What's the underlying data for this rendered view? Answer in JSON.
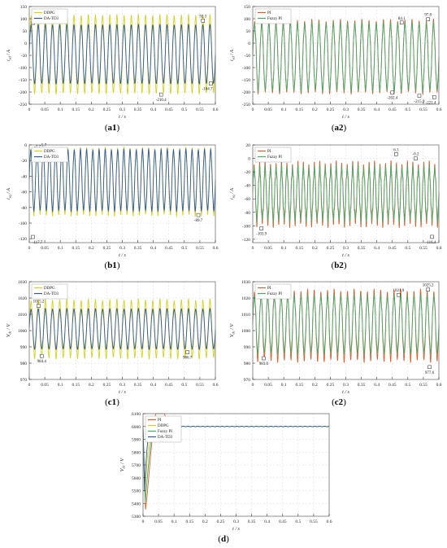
{
  "colors": {
    "ddpg": "#d6d21c",
    "datd3": "#2e5a9e",
    "pi": "#d3622e",
    "fuzzy_pi": "#49a86a",
    "frame": "#777777",
    "grid": "#dcdcdc"
  },
  "captions": [
    "a1",
    "a2",
    "b1",
    "b2",
    "c1",
    "c2",
    "d"
  ],
  "chart_data": [
    {
      "id": "a1",
      "type": "line",
      "xlabel": "t / s",
      "ylabel": "i_sd / A",
      "xlim": [
        0,
        0.6
      ],
      "ylim": [
        -250,
        150
      ],
      "xticks": [
        0,
        0.05,
        0.1,
        0.15,
        0.2,
        0.25,
        0.3,
        0.35,
        0.4,
        0.45,
        0.5,
        0.55,
        0.6
      ],
      "xtick_labels": [
        "0",
        "0.05",
        "0.1",
        "0.15",
        "0.2",
        "0.25",
        "0.3",
        "0.35",
        "0.4",
        "0.45",
        "0.5",
        "0.55",
        "0.6"
      ],
      "yticks": [
        -250,
        -200,
        -150,
        -100,
        -50,
        0,
        50,
        100,
        150
      ],
      "ytick_labels": [
        "-250",
        "-200",
        "-150",
        "-100",
        "-50",
        "0",
        "50",
        "100",
        "150"
      ],
      "legend": "top-left",
      "series": [
        {
          "name": "DDPG",
          "color_key": "ddpg",
          "cycles": 26,
          "mean": -45,
          "amplitude": 155,
          "ripple": 0.03
        },
        {
          "name": "DA-TD3",
          "color_key": "datd3",
          "cycles": 26,
          "mean": -45,
          "amplitude": 118,
          "ripple": 0.02
        }
      ],
      "annotations": [
        {
          "text": "83.1",
          "x": 0.012,
          "y": 83.1
        },
        {
          "text": "92.3",
          "x": 0.56,
          "y": 92.3
        },
        {
          "text": "-210.4",
          "x": 0.425,
          "y": -210.4
        },
        {
          "text": "-164.7",
          "x": 0.585,
          "y": -164.7
        }
      ]
    },
    {
      "id": "a2",
      "type": "line",
      "xlabel": "t / s",
      "ylabel": "i_sd / A",
      "xlim": [
        0,
        0.6
      ],
      "ylim": [
        -250,
        150
      ],
      "xticks": [
        0,
        0.05,
        0.1,
        0.15,
        0.2,
        0.25,
        0.3,
        0.35,
        0.4,
        0.45,
        0.5,
        0.55,
        0.6
      ],
      "xtick_labels": [
        "0",
        "0.05",
        "0.1",
        "0.15",
        "0.2",
        "0.25",
        "0.3",
        "0.35",
        "0.4",
        "0.45",
        "0.5",
        "0.55",
        "0.6"
      ],
      "yticks": [
        -250,
        -200,
        -150,
        -100,
        -50,
        0,
        50,
        100,
        150
      ],
      "ytick_labels": [
        "-250",
        "-200",
        "-150",
        "-100",
        "-50",
        "0",
        "50",
        "100",
        "150"
      ],
      "legend": "top-left",
      "series": [
        {
          "name": "PI",
          "color_key": "pi",
          "cycles": 26,
          "mean": -55,
          "amplitude": 140,
          "ripple": 0.06
        },
        {
          "name": "Fuzzy PI",
          "color_key": "fuzzy_pi",
          "cycles": 26,
          "mean": -55,
          "amplitude": 133,
          "ripple": 0.04
        }
      ],
      "annotations": [
        {
          "text": "84.1",
          "x": 0.48,
          "y": 84.1
        },
        {
          "text": "97.8",
          "x": 0.565,
          "y": 97.8
        },
        {
          "text": "-202.4",
          "x": 0.45,
          "y": -202.4
        },
        {
          "text": "-215.9",
          "x": 0.537,
          "y": -215.9
        },
        {
          "text": "-221.4",
          "x": 0.585,
          "y": -221.4
        }
      ]
    },
    {
      "id": "b1",
      "type": "line",
      "xlabel": "t / s",
      "ylabel": "i_sq / A",
      "xlim": [
        0,
        0.6
      ],
      "ylim": [
        -125,
        0
      ],
      "xticks": [
        0,
        0.05,
        0.1,
        0.15,
        0.2,
        0.25,
        0.3,
        0.35,
        0.4,
        0.45,
        0.5,
        0.55,
        0.6
      ],
      "xtick_labels": [
        "0",
        "0.05",
        "0.1",
        "0.15",
        "0.2",
        "0.25",
        "0.3",
        "0.35",
        "0.4",
        "0.45",
        "0.5",
        "0.55",
        "0.6"
      ],
      "yticks": [
        -120,
        -100,
        -80,
        -60,
        -40,
        -20,
        0
      ],
      "ytick_labels": [
        "-120",
        "-100",
        "-80",
        "-60",
        "-40",
        "-20",
        "0"
      ],
      "legend": "top-left",
      "series": [
        {
          "name": "DDPG",
          "color_key": "ddpg",
          "cycles": 30,
          "mean": -47,
          "amplitude": 41,
          "ripple": 0.05
        },
        {
          "name": "DA-TD3",
          "color_key": "datd3",
          "cycles": 30,
          "mean": -45,
          "amplitude": 38,
          "ripple": 0.03
        }
      ],
      "annotations": [
        {
          "text": "-7.7",
          "x": 0.02,
          "y": -7.7
        },
        {
          "text": "-5.7",
          "x": 0.045,
          "y": -5.7
        },
        {
          "text": "-117.7",
          "x": 0.012,
          "y": -117.7
        },
        {
          "text": "-89.7",
          "x": 0.545,
          "y": -89.7
        }
      ]
    },
    {
      "id": "b2",
      "type": "line",
      "xlabel": "t / s",
      "ylabel": "i_sq / A",
      "xlim": [
        0,
        0.6
      ],
      "ylim": [
        -125,
        20
      ],
      "xticks": [
        0,
        0.05,
        0.1,
        0.15,
        0.2,
        0.25,
        0.3,
        0.35,
        0.4,
        0.45,
        0.5,
        0.55,
        0.6
      ],
      "xtick_labels": [
        "0",
        "0.05",
        "0.1",
        "0.15",
        "0.2",
        "0.25",
        "0.3",
        "0.35",
        "0.4",
        "0.45",
        "0.5",
        "0.55",
        "0.6"
      ],
      "yticks": [
        -120,
        -100,
        -80,
        -60,
        -40,
        -20,
        0,
        20
      ],
      "ytick_labels": [
        "-120",
        "-100",
        "-80",
        "-60",
        "-40",
        "-20",
        "0",
        "20"
      ],
      "legend": "top-left",
      "series": [
        {
          "name": "PI",
          "color_key": "pi",
          "cycles": 34,
          "mean": -53,
          "amplitude": 42,
          "ripple": 0.12
        },
        {
          "name": "Fuzzy PI",
          "color_key": "fuzzy_pi",
          "cycles": 34,
          "mean": -52,
          "amplitude": 37,
          "ripple": 0.1
        }
      ],
      "annotations": [
        {
          "text": "6.3",
          "x": 0.462,
          "y": 6.3
        },
        {
          "text": "-0.2",
          "x": 0.525,
          "y": -0.2
        },
        {
          "text": "-103.9",
          "x": 0.028,
          "y": -103.9
        },
        {
          "text": "-116.4",
          "x": 0.578,
          "y": -116.4
        }
      ]
    },
    {
      "id": "c1",
      "type": "line",
      "xlabel": "t / s",
      "ylabel": "V_dc / V",
      "xlim": [
        0,
        0.6
      ],
      "ylim": [
        970,
        1030
      ],
      "xticks": [
        0,
        0.05,
        0.1,
        0.15,
        0.2,
        0.25,
        0.3,
        0.35,
        0.4,
        0.45,
        0.5,
        0.55,
        0.6
      ],
      "xtick_labels": [
        "0",
        "0.05",
        "0.1",
        "0.15",
        "0.2",
        "0.25",
        "0.3",
        "0.35",
        "0.4",
        "0.45",
        "0.5",
        "0.55",
        "0.6"
      ],
      "yticks": [
        970,
        980,
        990,
        1000,
        1010,
        1020,
        1030
      ],
      "ytick_labels": [
        "970",
        "980",
        "990",
        "1000",
        "1010",
        "1020",
        "1030"
      ],
      "legend": "top-left",
      "series": [
        {
          "name": "DDPG",
          "color_key": "ddpg",
          "cycles": 26,
          "mean": 1001,
          "amplitude": 17,
          "ripple": 0.05
        },
        {
          "name": "DA-TD3",
          "color_key": "datd3",
          "cycles": 26,
          "mean": 1001,
          "amplitude": 12,
          "ripple": 0.03
        }
      ],
      "annotations": [
        {
          "text": "1020.9",
          "x": 0.02,
          "y": 1020.9
        },
        {
          "text": "1015.2",
          "x": 0.03,
          "y": 1015.2
        },
        {
          "text": "984.4",
          "x": 0.04,
          "y": 984.4
        },
        {
          "text": "986.7",
          "x": 0.51,
          "y": 986.7
        }
      ]
    },
    {
      "id": "c2",
      "type": "line",
      "xlabel": "t / s",
      "ylabel": "V_dc / V",
      "xlim": [
        0,
        0.6
      ],
      "ylim": [
        970,
        1030
      ],
      "xticks": [
        0,
        0.05,
        0.1,
        0.15,
        0.2,
        0.25,
        0.3,
        0.35,
        0.4,
        0.45,
        0.5,
        0.55,
        0.6
      ],
      "xtick_labels": [
        "0",
        "0.05",
        "0.1",
        "0.15",
        "0.2",
        "0.25",
        "0.3",
        "0.35",
        "0.4",
        "0.45",
        "0.5",
        "0.55",
        "0.6"
      ],
      "yticks": [
        970,
        980,
        990,
        1000,
        1010,
        1020,
        1030
      ],
      "ytick_labels": [
        "970",
        "980",
        "990",
        "1000",
        "1010",
        "1020",
        "1030"
      ],
      "legend": "top-left",
      "series": [
        {
          "name": "PI",
          "color_key": "pi",
          "cycles": 28,
          "mean": 1003,
          "amplitude": 20,
          "ripple": 0.08
        },
        {
          "name": "Fuzzy PI",
          "color_key": "fuzzy_pi",
          "cycles": 28,
          "mean": 1004,
          "amplitude": 17,
          "ripple": 0.05
        }
      ],
      "annotations": [
        {
          "text": "1021.9",
          "x": 0.47,
          "y": 1021.9
        },
        {
          "text": "1025.2",
          "x": 0.565,
          "y": 1025.2
        },
        {
          "text": "983.0",
          "x": 0.035,
          "y": 983.0
        },
        {
          "text": "977.6",
          "x": 0.57,
          "y": 977.6
        }
      ]
    },
    {
      "id": "d",
      "type": "line",
      "xlabel": "t / s",
      "ylabel": "V_dc / V",
      "xlim": [
        0,
        0.6
      ],
      "ylim": [
        5300,
        6100
      ],
      "xticks": [
        0,
        0.05,
        0.1,
        0.15,
        0.2,
        0.25,
        0.3,
        0.35,
        0.4,
        0.45,
        0.5,
        0.55,
        0.6
      ],
      "xtick_labels": [
        "0",
        "0.05",
        "0.1",
        "0.15",
        "0.2",
        "0.25",
        "0.3",
        "0.35",
        "0.4",
        "0.45",
        "0.5",
        "0.55",
        "0.6"
      ],
      "yticks": [
        5300,
        5400,
        5500,
        5600,
        5700,
        5800,
        5900,
        6000,
        6100
      ],
      "ytick_labels": [
        "5300",
        "5400",
        "5500",
        "5600",
        "5700",
        "5800",
        "5900",
        "6000",
        "6100"
      ],
      "legend": "top-left",
      "steady": 6000,
      "series": [
        {
          "name": "PI",
          "color_key": "pi",
          "dip_t": 0.008,
          "dip_v": 5350,
          "settle_tc": 0.035
        },
        {
          "name": "DDPG",
          "color_key": "ddpg",
          "dip_t": 0.006,
          "dip_v": 5460,
          "settle_tc": 0.012
        },
        {
          "name": "Fuzzy PI",
          "color_key": "fuzzy_pi",
          "dip_t": 0.007,
          "dip_v": 5410,
          "settle_tc": 0.022
        },
        {
          "name": "DA-TD3",
          "color_key": "datd3",
          "dip_t": 0.005,
          "dip_v": 5480,
          "settle_tc": 0.008
        }
      ]
    }
  ]
}
